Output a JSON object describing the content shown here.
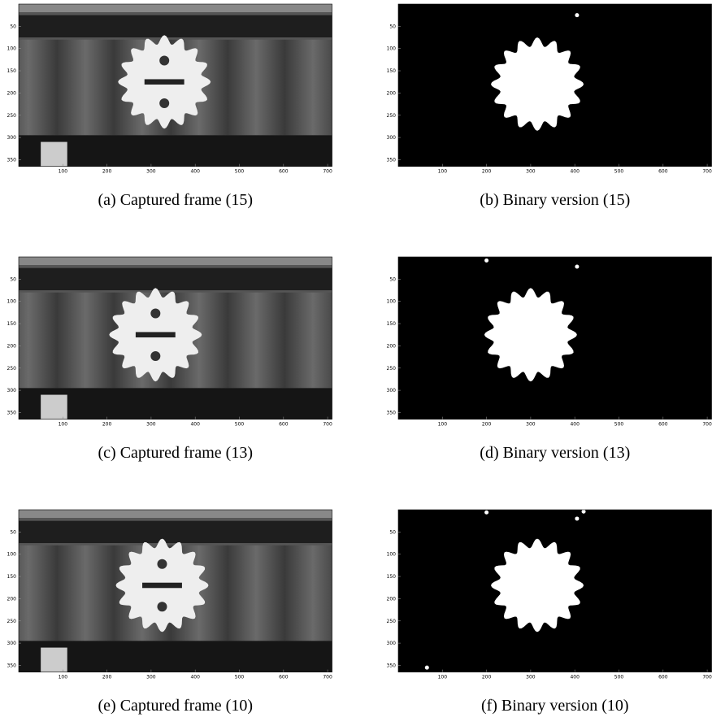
{
  "panels": [
    {
      "caption": "(a) Captured frame (15)",
      "kind": "frame"
    },
    {
      "caption": "(b) Binary version (15)",
      "kind": "binary"
    },
    {
      "caption": "(c) Captured frame (13)",
      "kind": "frame"
    },
    {
      "caption": "(d) Binary version (13)",
      "kind": "binary"
    },
    {
      "caption": "(e) Captured frame (10)",
      "kind": "frame"
    },
    {
      "caption": "(f) Binary version (10)",
      "kind": "binary"
    }
  ],
  "axes": {
    "xticks": [
      100,
      200,
      300,
      400,
      500,
      600,
      700
    ],
    "yticks": [
      50,
      100,
      150,
      200,
      250,
      300,
      350
    ]
  }
}
